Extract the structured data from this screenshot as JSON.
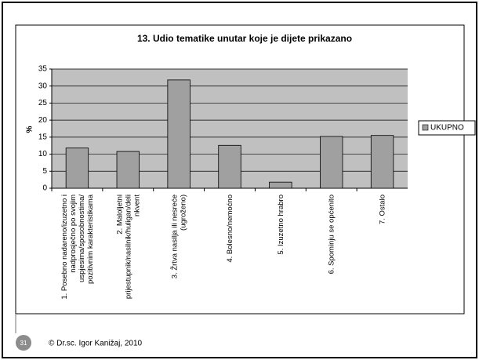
{
  "slide_number": "31",
  "footer": "© Dr.sc. Igor Kanižaj, 2010",
  "chart_data": {
    "type": "bar",
    "title": "13. Udio tematike unutar koje je dijete prikazano",
    "y_label": "%",
    "categories": [
      "1. Posebno nadareno/izuzetno i\nnadprosječno po svojim\nuspjesima/sposobnostima/\npozitivnim karakteristikama",
      "2. Maloljetni\nprijestupnik/nasilnik/huligan/deli\nnkvent",
      "3. Žrtva nasilja ili nesreće\n(ugroženo)",
      "4. Bolesno/nemoćno",
      "5. Izuzetno hrabro",
      "6. Spominju se općenito",
      "7. Ostalo"
    ],
    "series": [
      {
        "name": "UKUPNO",
        "color": "#a0a0a0",
        "values": [
          11.8,
          10.8,
          31.8,
          12.6,
          1.8,
          15.2,
          15.5
        ]
      }
    ],
    "ylim": [
      0,
      35
    ],
    "yticks": [
      0,
      5,
      10,
      15,
      20,
      25,
      30,
      35
    ],
    "grid": true,
    "legend": "right"
  }
}
